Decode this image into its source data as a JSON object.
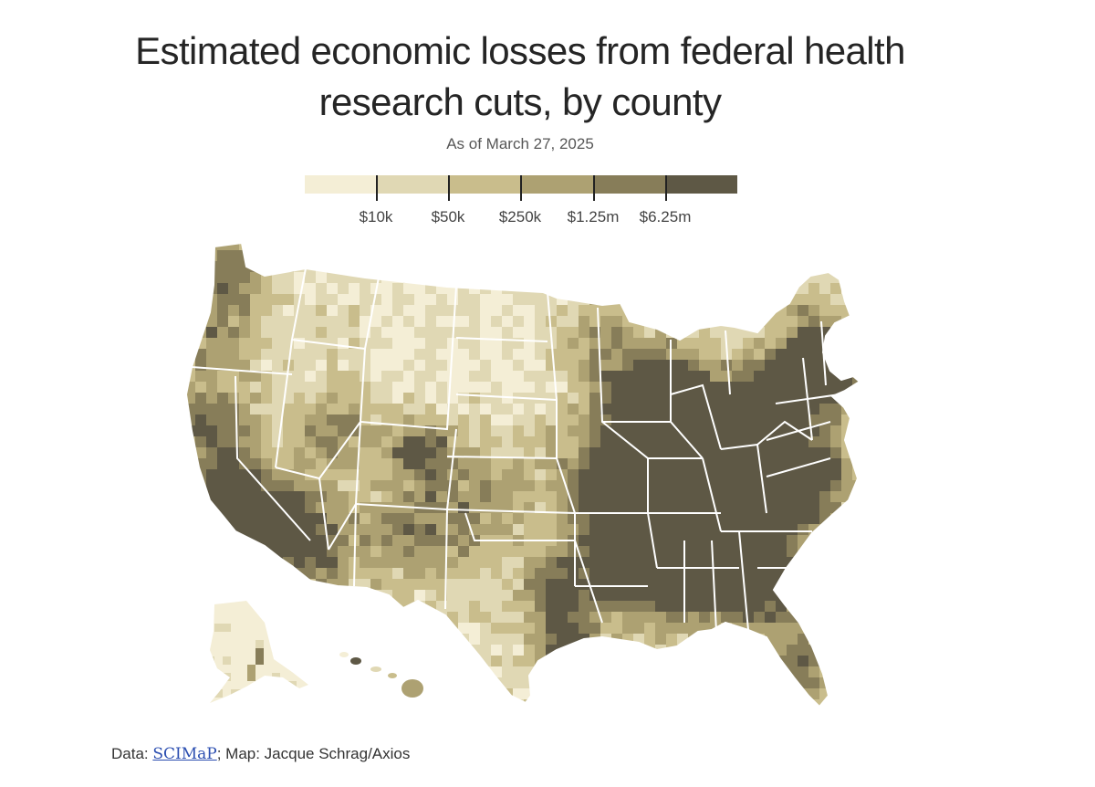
{
  "header": {
    "title_line1": "Estimated economic losses from federal health",
    "title_line2": "research cuts, by county",
    "subtitle": "As of March 27, 2025"
  },
  "legend": {
    "labels": [
      "$10k",
      "$50k",
      "$250k",
      "$1.25m",
      "$6.25m"
    ],
    "colors": [
      "#f4eed6",
      "#e0d8b4",
      "#c9bd8c",
      "#ada172",
      "#877d59",
      "#5e5845"
    ]
  },
  "map": {
    "regions": [
      "Alaska",
      "Hawaii",
      "Contiguous United States"
    ]
  },
  "footer": {
    "data_prefix": "Data: ",
    "data_source": "SCIMaP",
    "credit": "; Map: Jacque Schrag/Axios"
  }
}
